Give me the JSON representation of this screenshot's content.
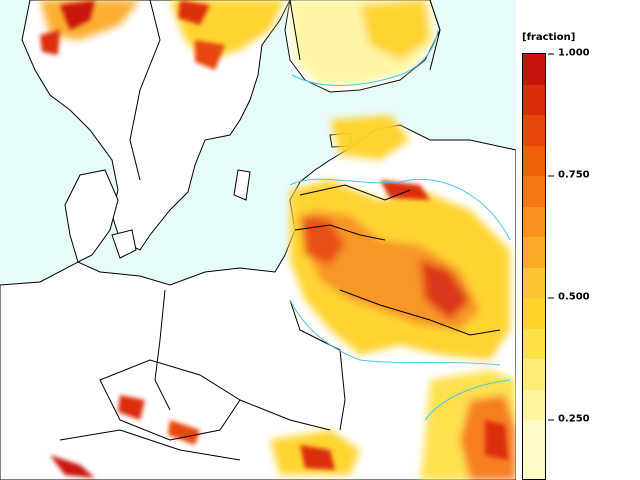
{
  "legend": {
    "title": "[fraction]",
    "ticks": [
      "1.000",
      "0.750",
      "0.500",
      "0.250"
    ],
    "tick_values": [
      1.0,
      0.75,
      0.5,
      0.25
    ],
    "vmin": 0.125,
    "vmax": 1.0,
    "segments": [
      {
        "from": 0.9375,
        "to": 1.0,
        "color": "#c8140a"
      },
      {
        "from": 0.875,
        "to": 0.9375,
        "color": "#dc2d0a"
      },
      {
        "from": 0.8125,
        "to": 0.875,
        "color": "#e8460a"
      },
      {
        "from": 0.75,
        "to": 0.8125,
        "color": "#f05f0a"
      },
      {
        "from": 0.6875,
        "to": 0.75,
        "color": "#f57814"
      },
      {
        "from": 0.625,
        "to": 0.6875,
        "color": "#f8911e"
      },
      {
        "from": 0.5625,
        "to": 0.625,
        "color": "#fbaa28"
      },
      {
        "from": 0.5,
        "to": 0.5625,
        "color": "#fdc332"
      },
      {
        "from": 0.4375,
        "to": 0.5,
        "color": "#ffd228"
      },
      {
        "from": 0.375,
        "to": 0.4375,
        "color": "#ffe046"
      },
      {
        "from": 0.3125,
        "to": 0.375,
        "color": "#ffec78"
      },
      {
        "from": 0.25,
        "to": 0.3125,
        "color": "#fff5a0"
      },
      {
        "from": 0.125,
        "to": 0.25,
        "color": "#fffac8"
      }
    ]
  },
  "colors": {
    "ocean": "#e8fbfb",
    "land": "#ffffff",
    "contour": "#48c8e0",
    "border": "#000000"
  }
}
